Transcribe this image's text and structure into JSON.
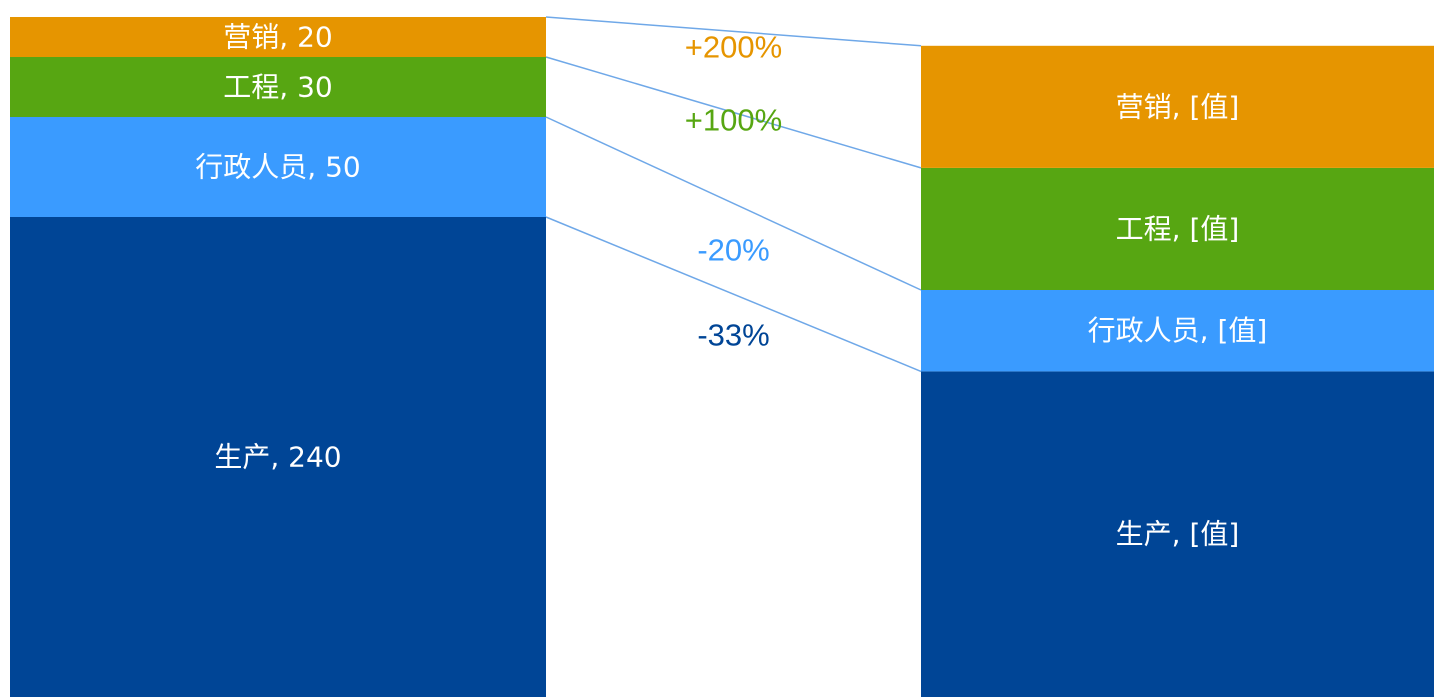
{
  "chart_data": {
    "type": "bar",
    "subtype": "stacked-bar-comparison",
    "left_bar": {
      "segments": [
        {
          "name": "生产",
          "value": 240,
          "label": "生产, 240",
          "color": "#004596"
        },
        {
          "name": "行政人员",
          "value": 50,
          "label": "行政人员, 50",
          "color": "#3a9bff"
        },
        {
          "name": "工程",
          "value": 30,
          "label": "工程, 30",
          "color": "#57a612"
        },
        {
          "name": "营销",
          "value": 20,
          "label": "营销, 20",
          "color": "#e69500"
        }
      ]
    },
    "right_bar": {
      "segments": [
        {
          "name": "生产",
          "value": 160,
          "label": "生产, [值]",
          "color": "#004596"
        },
        {
          "name": "行政人员",
          "value": 40,
          "label": "行政人员, [值]",
          "color": "#3a9bff"
        },
        {
          "name": "工程",
          "value": 60,
          "label": "工程, [值]",
          "color": "#57a612"
        },
        {
          "name": "营销",
          "value": 60,
          "label": "营销, [值]",
          "color": "#e69500"
        }
      ]
    },
    "changes": [
      {
        "segment": "营销",
        "label": "+200%",
        "color": "#e69500"
      },
      {
        "segment": "工程",
        "label": "+100%",
        "color": "#57a612"
      },
      {
        "segment": "行政人员",
        "label": "-20%",
        "color": "#3a9bff"
      },
      {
        "segment": "生产",
        "label": "-33%",
        "color": "#004596"
      }
    ],
    "connector_color": "#6fa8e8"
  }
}
